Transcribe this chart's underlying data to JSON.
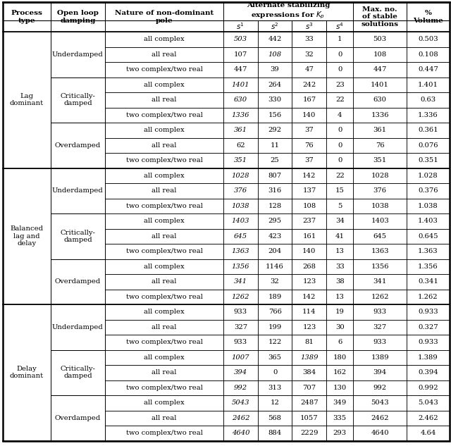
{
  "rows": [
    [
      "all complex",
      "503",
      "442",
      "33",
      "1",
      "503",
      "0.503"
    ],
    [
      "all real",
      "107",
      "108",
      "32",
      "0",
      "108",
      "0.108"
    ],
    [
      "two complex/two real",
      "447",
      "39",
      "47",
      "0",
      "447",
      "0.447"
    ],
    [
      "all complex",
      "1401",
      "264",
      "242",
      "23",
      "1401",
      "1.401"
    ],
    [
      "all real",
      "630",
      "330",
      "167",
      "22",
      "630",
      "0.63"
    ],
    [
      "two complex/two real",
      "1336",
      "156",
      "140",
      "4",
      "1336",
      "1.336"
    ],
    [
      "all complex",
      "361",
      "292",
      "37",
      "0",
      "361",
      "0.361"
    ],
    [
      "all real",
      "62",
      "11",
      "76",
      "0",
      "76",
      "0.076"
    ],
    [
      "two complex/two real",
      "351",
      "25",
      "37",
      "0",
      "351",
      "0.351"
    ],
    [
      "all complex",
      "1028",
      "807",
      "142",
      "22",
      "1028",
      "1.028"
    ],
    [
      "all real",
      "376",
      "316",
      "137",
      "15",
      "376",
      "0.376"
    ],
    [
      "two complex/two real",
      "1038",
      "128",
      "108",
      "5",
      "1038",
      "1.038"
    ],
    [
      "all complex",
      "1403",
      "295",
      "237",
      "34",
      "1403",
      "1.403"
    ],
    [
      "all real",
      "645",
      "423",
      "161",
      "41",
      "645",
      "0.645"
    ],
    [
      "two complex/two real",
      "1363",
      "204",
      "140",
      "13",
      "1363",
      "1.363"
    ],
    [
      "all complex",
      "1356",
      "1146",
      "268",
      "33",
      "1356",
      "1.356"
    ],
    [
      "all real",
      "341",
      "32",
      "123",
      "38",
      "341",
      "0.341"
    ],
    [
      "two complex/two real",
      "1262",
      "189",
      "142",
      "13",
      "1262",
      "1.262"
    ],
    [
      "all complex",
      "933",
      "766",
      "114",
      "19",
      "933",
      "0.933"
    ],
    [
      "all real",
      "327",
      "199",
      "123",
      "30",
      "327",
      "0.327"
    ],
    [
      "two complex/two real",
      "933",
      "122",
      "81",
      "6",
      "933",
      "0.933"
    ],
    [
      "all complex",
      "1007",
      "365",
      "1389",
      "180",
      "1389",
      "1.389"
    ],
    [
      "all real",
      "394",
      "0",
      "384",
      "162",
      "394",
      "0.394"
    ],
    [
      "two complex/two real",
      "992",
      "313",
      "707",
      "130",
      "992",
      "0.992"
    ],
    [
      "all complex",
      "5043",
      "12",
      "2487",
      "349",
      "5043",
      "5.043"
    ],
    [
      "all real",
      "2462",
      "568",
      "1057",
      "335",
      "2462",
      "2.462"
    ],
    [
      "two complex/two real",
      "4640",
      "884",
      "2229",
      "293",
      "4640",
      "4.64"
    ]
  ],
  "italic_col3": [
    0,
    3,
    4,
    5,
    6,
    8,
    9,
    10,
    11,
    12,
    13,
    14,
    15,
    16,
    17,
    21,
    22,
    23,
    24,
    25,
    26
  ],
  "italic_col4": [
    1
  ],
  "italic_col5": [
    21
  ],
  "process_groups": [
    {
      "label": "Lag\ndominant",
      "start": 0,
      "end": 8
    },
    {
      "label": "Balanced\nlag and\ndelay",
      "start": 9,
      "end": 17
    },
    {
      "label": "Delay\ndominant",
      "start": 18,
      "end": 26
    }
  ],
  "damping_groups": [
    {
      "label": "Underdamped",
      "start": 0,
      "end": 2
    },
    {
      "label": "Critically-\ndamped",
      "start": 3,
      "end": 5
    },
    {
      "label": "Overdamped",
      "start": 6,
      "end": 8
    },
    {
      "label": "Underdamped",
      "start": 9,
      "end": 11
    },
    {
      "label": "Critically-\ndamped",
      "start": 12,
      "end": 14
    },
    {
      "label": "Overdamped",
      "start": 15,
      "end": 17
    },
    {
      "label": "Underdamped",
      "start": 18,
      "end": 20
    },
    {
      "label": "Critically-\ndamped",
      "start": 21,
      "end": 23
    },
    {
      "label": "Overdamped",
      "start": 24,
      "end": 26
    }
  ]
}
